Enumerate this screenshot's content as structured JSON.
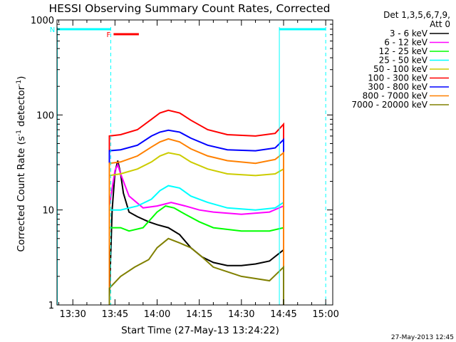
{
  "chart_data": {
    "type": "line",
    "title": "HESSI Observing Summary Count Rates, Corrected",
    "xlabel": "Start Time (27-May-13 13:24:22)",
    "ylabel": "Corrected Count Rate (s⁻¹ detector⁻¹)",
    "y_scale": "log",
    "ylim": [
      1,
      1000
    ],
    "xlim": [
      "13:24:22",
      "15:02:30"
    ],
    "x_ticks": [
      "13:30",
      "13:45",
      "14:00",
      "14:15",
      "14:30",
      "14:45",
      "15:00"
    ],
    "y_ticks": [
      "1",
      "10",
      "100",
      "1000"
    ],
    "grid": false,
    "legend_position": "right",
    "legend_header": [
      "Det 1,3,5,6,7,9,",
      "Att 0"
    ],
    "footer_date": "27-May-2013 12:45",
    "bars": [
      {
        "label": "F",
        "start": "13:44:30",
        "end": "13:53:30",
        "color": "#ff0000"
      },
      {
        "label": "N",
        "start": "13:24:30",
        "end": "13:43:30",
        "color": "#00ffff"
      },
      {
        "label": "",
        "start": "14:43:30",
        "end": "15:00:00",
        "color": "#00ffff"
      }
    ],
    "series": [
      {
        "name": "3 - 6 keV",
        "color": "#000000",
        "x": [
          "13:43:00",
          "13:44:00",
          "13:45:00",
          "13:46:00",
          "13:47:00",
          "13:48:00",
          "13:50:00",
          "13:53:00",
          "13:57:00",
          "14:00:00",
          "14:04:00",
          "14:08:00",
          "14:12:00",
          "14:16:00",
          "14:20:00",
          "14:25:00",
          "14:30:00",
          "14:35:00",
          "14:40:00",
          "14:45:00"
        ],
        "values": [
          1.2,
          10,
          25,
          33,
          24,
          15,
          9.5,
          8.5,
          7.5,
          7,
          6.5,
          5.5,
          4,
          3.2,
          2.8,
          2.6,
          2.6,
          2.7,
          2.9,
          3.8
        ]
      },
      {
        "name": "6 - 12 keV",
        "color": "#ff00ff",
        "x": [
          "13:43:00",
          "13:45:00",
          "13:46:00",
          "13:47:00",
          "13:50:00",
          "13:55:00",
          "14:00:00",
          "14:05:00",
          "14:10:00",
          "14:15:00",
          "14:20:00",
          "14:30:00",
          "14:40:00",
          "14:45:00"
        ],
        "values": [
          11,
          26,
          30,
          24,
          14,
          10.5,
          11,
          12,
          11,
          10,
          9.5,
          9,
          9.5,
          11
        ]
      },
      {
        "name": "12 - 25 keV",
        "color": "#00ff00",
        "x": [
          "13:43:00",
          "13:47:00",
          "13:50:00",
          "13:55:00",
          "14:00:00",
          "14:03:00",
          "14:06:00",
          "14:10:00",
          "14:15:00",
          "14:20:00",
          "14:30:00",
          "14:40:00",
          "14:45:00"
        ],
        "values": [
          6.5,
          6.5,
          6,
          6.5,
          9.5,
          11,
          10.5,
          9,
          7.5,
          6.5,
          6,
          6,
          6.5
        ]
      },
      {
        "name": "25 - 50 keV",
        "color": "#00ffff",
        "x": [
          "13:43:00",
          "13:47:00",
          "13:53:00",
          "13:58:00",
          "14:01:00",
          "14:04:00",
          "14:08:00",
          "14:12:00",
          "14:18:00",
          "14:25:00",
          "14:35:00",
          "14:42:00",
          "14:45:00"
        ],
        "values": [
          10,
          10,
          11,
          13,
          16,
          18,
          17,
          14,
          12,
          10.5,
          10,
          10.5,
          12
        ]
      },
      {
        "name": "50 - 100 keV",
        "color": "#cccc00",
        "x": [
          "13:43:00",
          "13:47:00",
          "13:53:00",
          "13:58:00",
          "14:01:00",
          "14:04:00",
          "14:08:00",
          "14:12:00",
          "14:18:00",
          "14:25:00",
          "14:35:00",
          "14:42:00",
          "14:45:00"
        ],
        "values": [
          23,
          24,
          27,
          32,
          37,
          40,
          38,
          32,
          27,
          24,
          23,
          24,
          27
        ]
      },
      {
        "name": "100 - 300 keV",
        "color": "#ff0000",
        "x": [
          "13:43:00",
          "13:47:00",
          "13:53:00",
          "13:58:00",
          "14:01:00",
          "14:04:00",
          "14:08:00",
          "14:12:00",
          "14:18:00",
          "14:25:00",
          "14:35:00",
          "14:42:00",
          "14:45:00"
        ],
        "values": [
          60,
          62,
          70,
          90,
          105,
          112,
          105,
          88,
          70,
          62,
          60,
          64,
          80
        ]
      },
      {
        "name": "300 - 800 keV",
        "color": "#0000ff",
        "x": [
          "13:43:00",
          "13:47:00",
          "13:53:00",
          "13:58:00",
          "14:01:00",
          "14:04:00",
          "14:08:00",
          "14:12:00",
          "14:18:00",
          "14:25:00",
          "14:35:00",
          "14:42:00",
          "14:45:00"
        ],
        "values": [
          42,
          43,
          48,
          60,
          66,
          69,
          66,
          57,
          48,
          43,
          42,
          45,
          55
        ]
      },
      {
        "name": "800 - 7000 keV",
        "color": "#ff8000",
        "x": [
          "13:43:00",
          "13:47:00",
          "13:53:00",
          "13:58:00",
          "14:01:00",
          "14:04:00",
          "14:08:00",
          "14:12:00",
          "14:18:00",
          "14:25:00",
          "14:35:00",
          "14:42:00",
          "14:45:00"
        ],
        "values": [
          31,
          32,
          37,
          46,
          52,
          56,
          52,
          44,
          37,
          33,
          31,
          34,
          40
        ]
      },
      {
        "name": "7000 - 20000 keV",
        "color": "#808000",
        "x": [
          "13:43:00",
          "13:47:00",
          "13:52:00",
          "13:57:00",
          "14:00:00",
          "14:04:00",
          "14:08:00",
          "14:12:00",
          "14:16:00",
          "14:20:00",
          "14:30:00",
          "14:40:00",
          "14:45:00"
        ],
        "values": [
          1.5,
          2,
          2.5,
          3,
          4,
          5,
          4.5,
          4,
          3.2,
          2.5,
          2,
          1.8,
          2.5
        ]
      }
    ]
  }
}
